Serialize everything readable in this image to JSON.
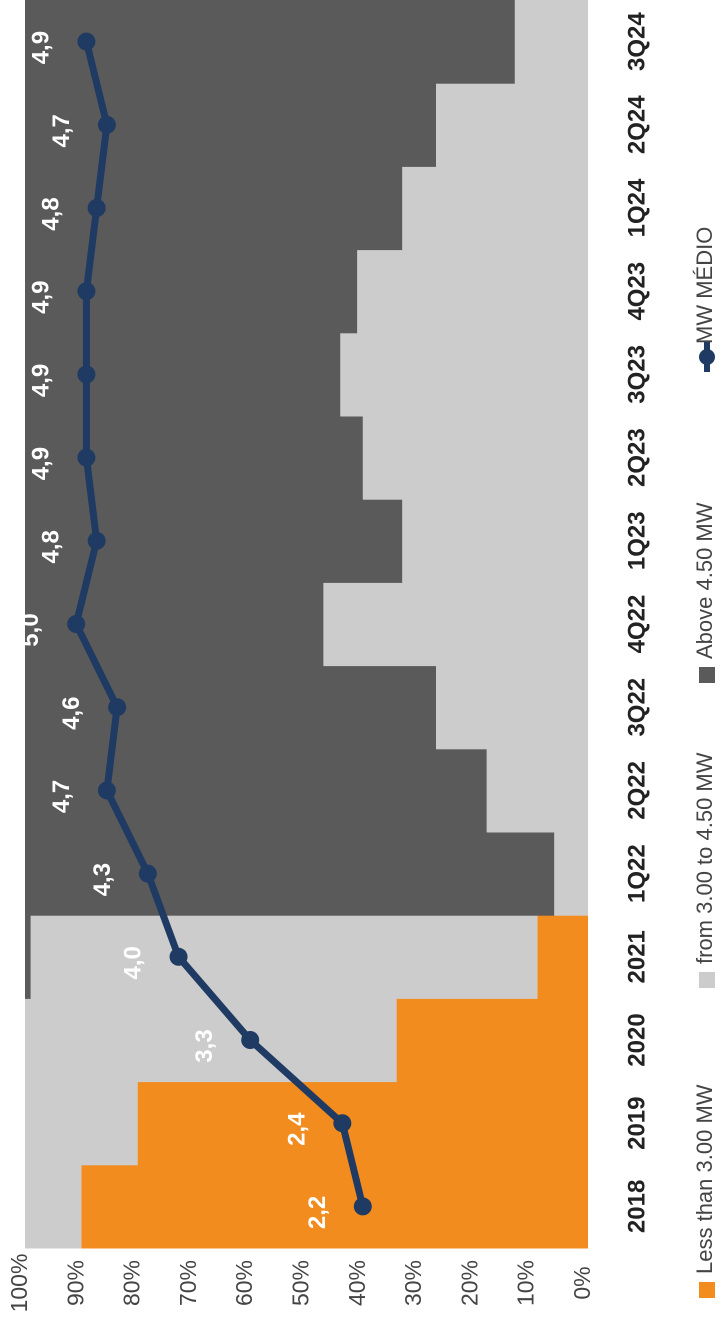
{
  "chart_data": {
    "type": "bar",
    "stacked": true,
    "orientation": "rotated-90-clockwise",
    "categories": [
      "2018",
      "2019",
      "2020",
      "2021",
      "1Q22",
      "2Q22",
      "3Q22",
      "4Q22",
      "1Q23",
      "2Q23",
      "3Q23",
      "4Q23",
      "1Q24",
      "2Q24",
      "3Q24"
    ],
    "series": [
      {
        "name": "Less than 3.00 MW",
        "color": "#f28c1e",
        "values": [
          90,
          80,
          34,
          9,
          0,
          0,
          0,
          0,
          0,
          0,
          0,
          0,
          0,
          0,
          0
        ]
      },
      {
        "name": "from 3.00 to 4.50 MW",
        "color": "#cccccc",
        "values": [
          10,
          20,
          66,
          90,
          6,
          18,
          27,
          47,
          33,
          40,
          44,
          41,
          33,
          27,
          13
        ]
      },
      {
        "name": "Above 4.50 MW",
        "color": "#5a5a5a",
        "values": [
          0,
          0,
          0,
          1,
          94,
          82,
          73,
          53,
          67,
          60,
          56,
          59,
          67,
          73,
          87
        ]
      }
    ],
    "line_series": {
      "name": "MW MÉDIO",
      "color": "#1f3a63",
      "values": [
        2.2,
        2.4,
        3.3,
        4.0,
        4.3,
        4.7,
        4.6,
        5.0,
        4.8,
        4.9,
        4.9,
        4.9,
        4.8,
        4.7,
        4.9
      ],
      "labels": [
        "2,2",
        "2,4",
        "3,3",
        "4,0",
        "4,3",
        "4,7",
        "4,6",
        "5,0",
        "4,8",
        "4,9",
        "4,9",
        "4,9",
        "4,8",
        "4,7",
        "4,9"
      ],
      "axis_range": [
        0,
        5.5
      ]
    },
    "y_axis": {
      "range": [
        0,
        100
      ],
      "ticks": [
        "0%",
        "10%",
        "20%",
        "30%",
        "40%",
        "50%",
        "60%",
        "70%",
        "80%",
        "90%",
        "100%"
      ]
    },
    "grid": false,
    "legend_placement": "bottom",
    "title": "",
    "xlabel": "",
    "ylabel": ""
  }
}
